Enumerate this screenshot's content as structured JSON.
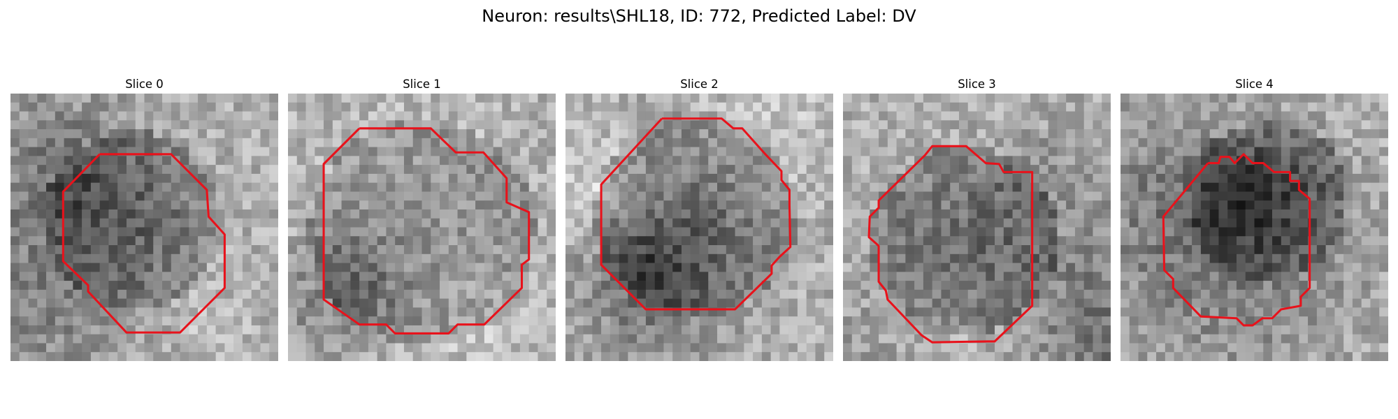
{
  "figure": {
    "title": "Neuron: results\\SHL18, ID: 772, Predicted Label: DV"
  },
  "slices": [
    {
      "title": "Slice 0",
      "seed": 11,
      "dark_center": [
        0.45,
        0.47
      ],
      "dark_radius": 0.33
    },
    {
      "title": "Slice 1",
      "seed": 23,
      "dark_center": [
        0.5,
        0.52
      ],
      "dark_radius": 0.42
    },
    {
      "title": "Slice 2",
      "seed": 37,
      "dark_center": [
        0.49,
        0.45
      ],
      "dark_radius": 0.38
    },
    {
      "title": "Slice 3",
      "seed": 41,
      "dark_center": [
        0.45,
        0.55
      ],
      "dark_radius": 0.35
    },
    {
      "title": "Slice 4",
      "seed": 53,
      "dark_center": [
        0.55,
        0.4
      ],
      "dark_radius": 0.3
    }
  ],
  "colors": {
    "contour": "#e8121b"
  }
}
